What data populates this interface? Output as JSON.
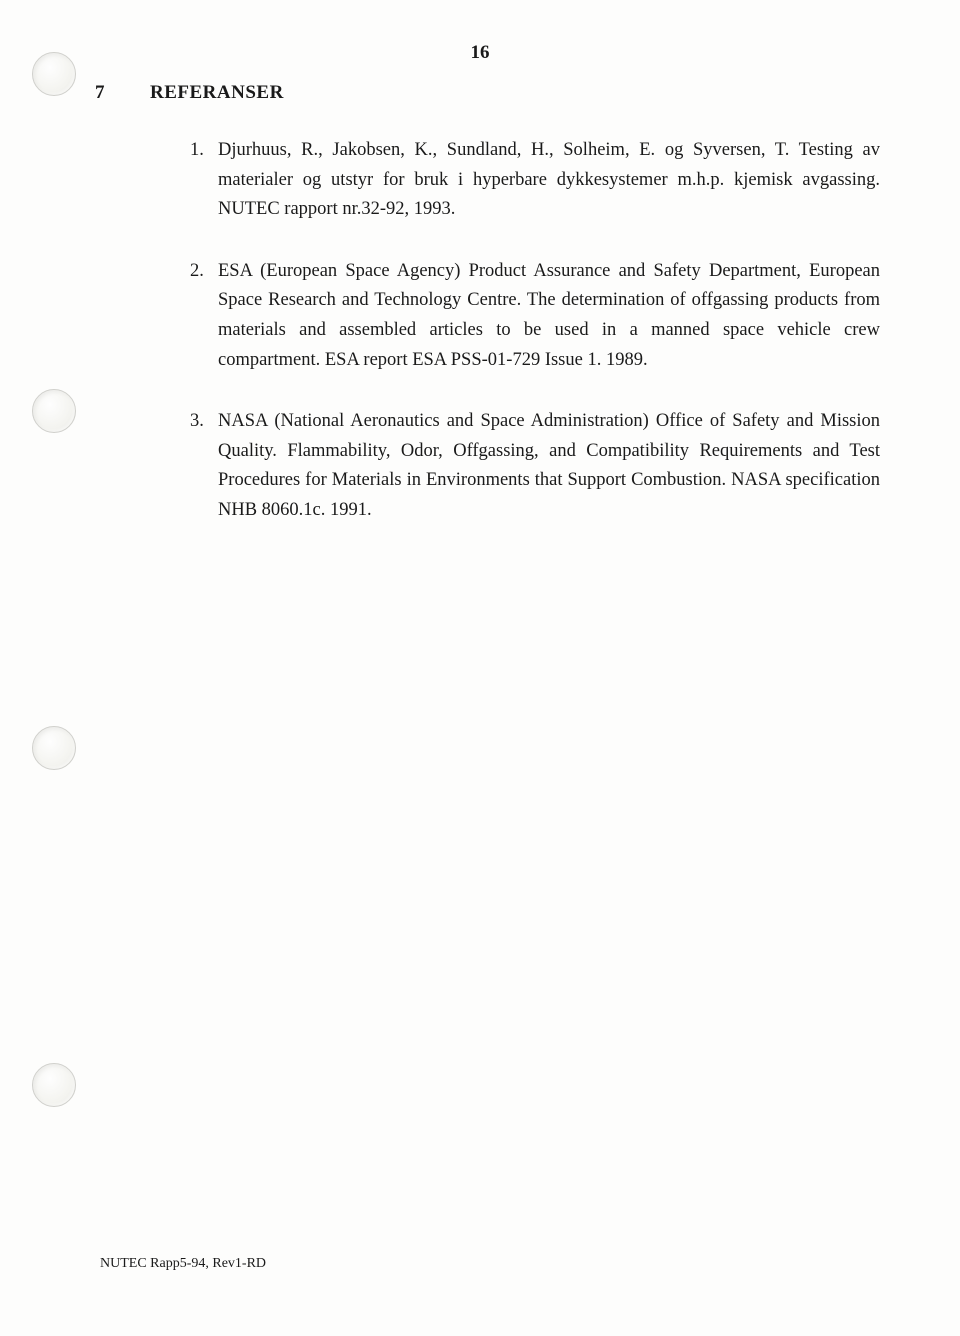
{
  "page_number": "16",
  "section": {
    "number": "7",
    "heading": "REFERANSER"
  },
  "references": [
    {
      "number": "1.",
      "text": "Djurhuus, R., Jakobsen, K., Sundland, H., Solheim, E. og Syversen, T. Testing av materialer og utstyr for bruk i hyperbare dykkesystemer m.h.p. kjemisk avgassing. NUTEC rapport nr.32-92, 1993."
    },
    {
      "number": "2.",
      "text": "ESA (European Space Agency) Product Assurance and Safety Department, European Space Research and Technology Centre. The determination of offgassing products from materials and assembled articles to be used in a manned space vehicle crew compartment. ESA report ESA PSS-01-729 Issue 1. 1989."
    },
    {
      "number": "3.",
      "text": "NASA (National Aeronautics and Space Administration) Office of Safety and Mission Quality. Flammability, Odor, Offgassing, and Compatibility Requirements and Test Procedures for Materials in Environments that Support Combustion. NASA specification NHB 8060.1c. 1991."
    }
  ],
  "footer": "NUTEC Rapp5-94, Rev1-RD"
}
